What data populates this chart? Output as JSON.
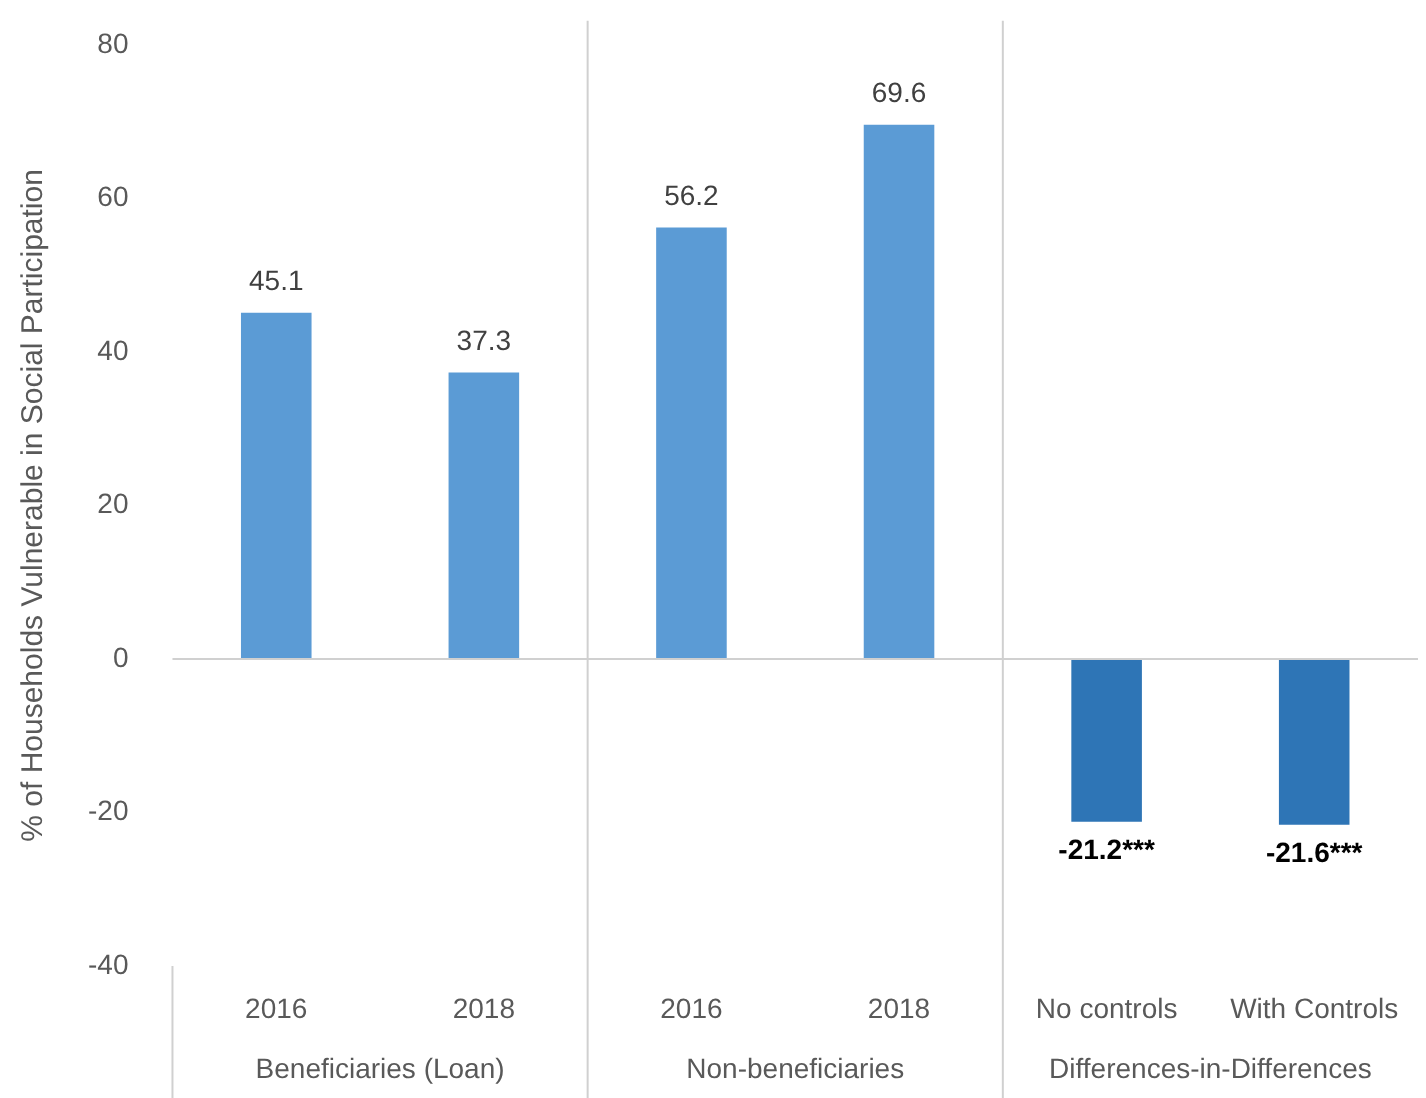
{
  "chart_data": {
    "type": "bar",
    "ylabel": "% of Households Vulnerable in Social Participation",
    "categories": [
      "2016",
      "2018",
      "2016",
      "2018",
      "No controls",
      "With Controls"
    ],
    "values": [
      45.1,
      37.3,
      56.2,
      69.6,
      -21.2,
      -21.6
    ],
    "colors": [
      "#5b9bd5",
      "#5b9bd5",
      "#5b9bd5",
      "#5b9bd5",
      "#2e75b6",
      "#2e75b6"
    ],
    "value_labels": [
      "45.1",
      "37.3",
      "56.2",
      "69.6",
      "-21.2***",
      "-21.6***"
    ],
    "annotations": [
      "Beneficiaries (Loan)",
      "Non-beneficiaries",
      "Differences-in-Differences"
    ],
    "ylim": [
      -40,
      80
    ],
    "yticks": [
      -40,
      -20,
      0,
      20,
      40,
      60,
      80
    ],
    "ref_lines": [
      {
        "axis": "y",
        "value": 0,
        "color": "#d0d0d0"
      }
    ],
    "grid": false,
    "legend": false
  }
}
